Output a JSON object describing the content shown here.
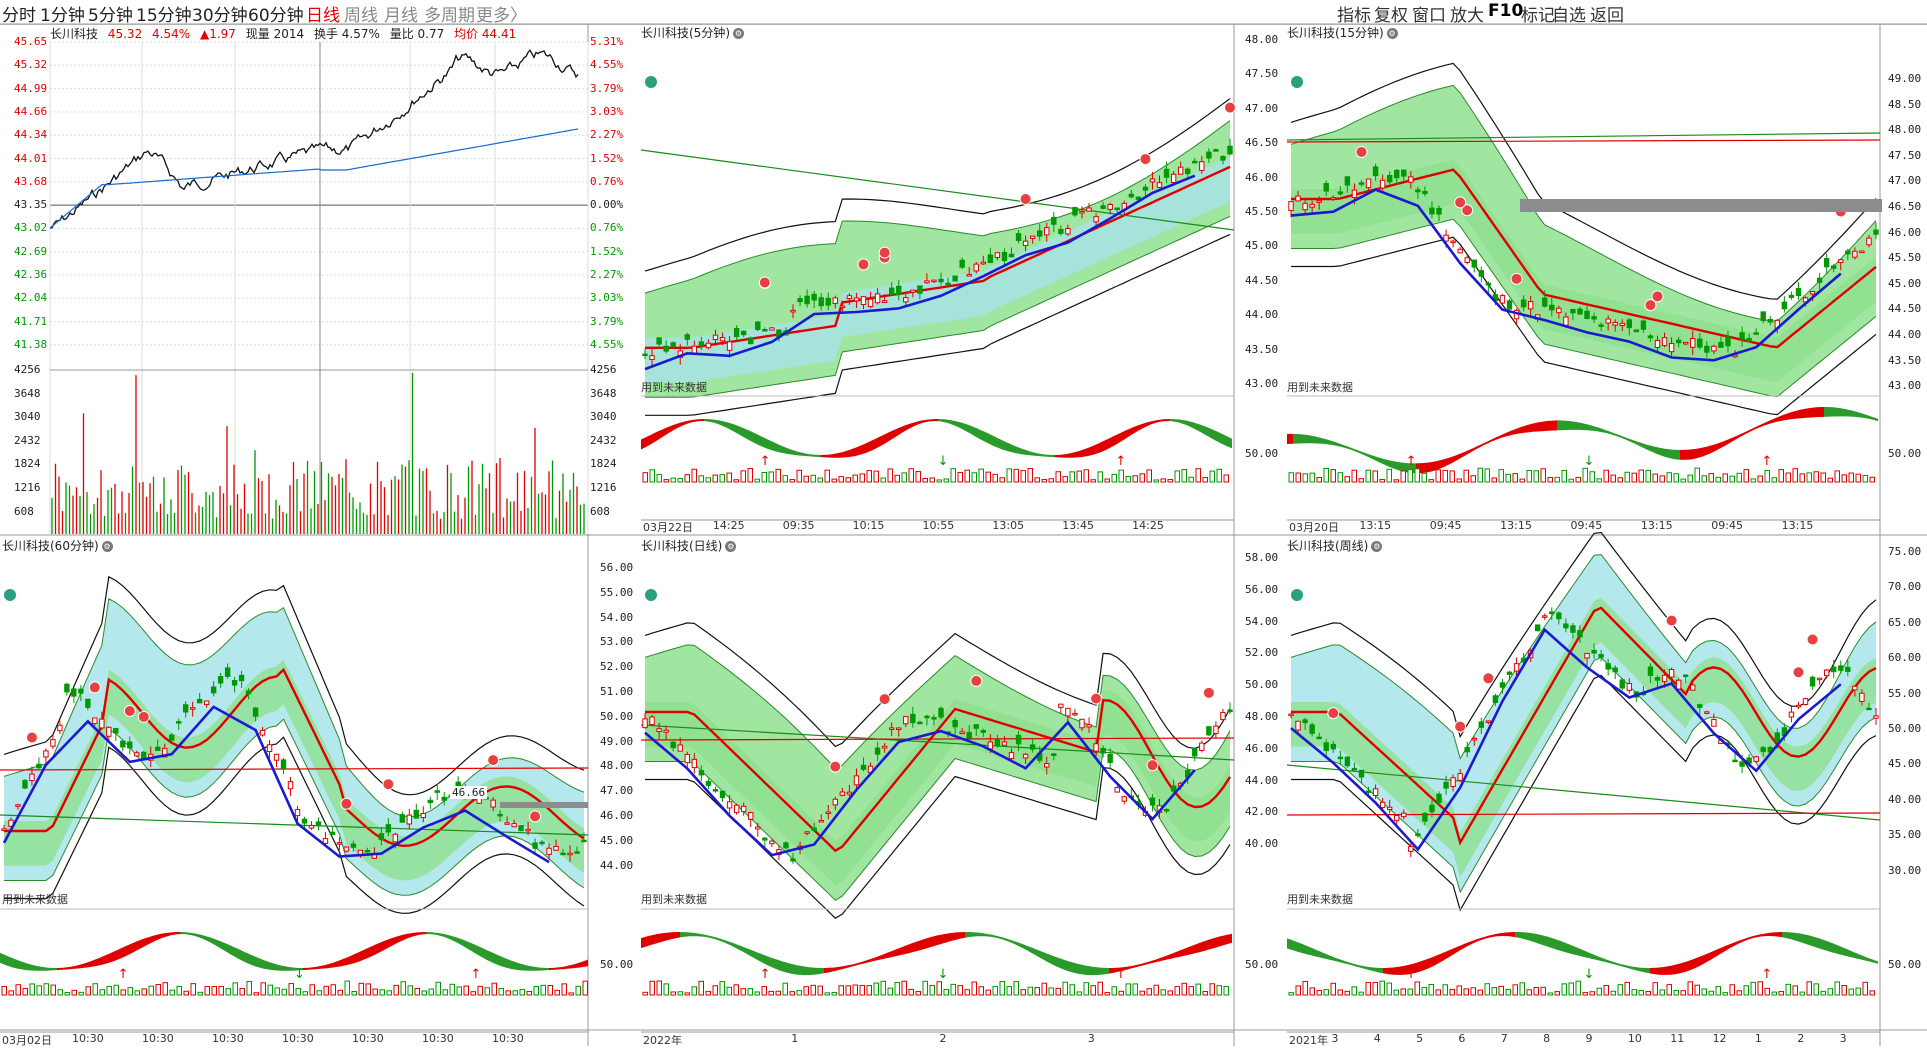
{
  "topbar": {
    "periods": [
      {
        "label": "分时",
        "active": false
      },
      {
        "label": "1分钟",
        "active": false
      },
      {
        "label": "5分钟",
        "active": false
      },
      {
        "label": "15分钟",
        "active": false
      },
      {
        "label": "30分钟",
        "active": false
      },
      {
        "label": "60分钟",
        "active": false
      },
      {
        "label": "日线",
        "active": true
      },
      {
        "label": "周线",
        "active": false
      },
      {
        "label": "月线",
        "active": false
      },
      {
        "label": "多周期",
        "active": false
      },
      {
        "label": "更多〉",
        "active": false
      }
    ],
    "tools": [
      "指标",
      "复权",
      "窗口",
      "放大",
      "F10",
      "标记",
      "自选",
      "返回"
    ]
  },
  "colors": {
    "up": "#e00000",
    "down": "#009900",
    "band_green": "#8fe08f",
    "band_cyan": "#a8e4ea",
    "wave_blue": "#1a1ad0"
  },
  "intraday": {
    "name": "长川科技",
    "price": "45.32",
    "pct": "4.54%",
    "change": "▲1.97",
    "volume_label": "现量 2014",
    "turnover_label": "换手 4.57%",
    "volratio_label": "量比 0.77",
    "avg_label": "均价 44.41",
    "price_ticks": [
      "45.65",
      "45.32",
      "44.99",
      "44.66",
      "44.34",
      "44.01",
      "43.68",
      "43.35",
      "43.02",
      "42.69",
      "42.36",
      "42.04",
      "41.71",
      "41.38"
    ],
    "pct_ticks": [
      "5.31%",
      "4.55%",
      "3.79%",
      "3.03%",
      "2.27%",
      "1.52%",
      "0.76%",
      "0.00%",
      "0.76%",
      "1.52%",
      "2.27%",
      "3.03%",
      "3.79%",
      "4.55%"
    ],
    "vol_ticks": [
      "4256",
      "3648",
      "3040",
      "2432",
      "1824",
      "1216",
      "608"
    ]
  },
  "panels": [
    {
      "id": "m5",
      "title": "长川科技(5分钟)",
      "note": "用到未来数据",
      "y_ticks": [],
      "x_ticks": [
        "03月22日",
        "14:25",
        "09:35",
        "10:15",
        "10:55",
        "13:05",
        "13:45",
        "14:25"
      ]
    },
    {
      "id": "m15",
      "title": "长川科技(15分钟)",
      "note": "用到未来数据",
      "y_ticks": [
        "48.00",
        "47.50",
        "47.00",
        "46.50",
        "46.00",
        "45.50",
        "45.00",
        "44.50",
        "44.00",
        "43.50",
        "43.00"
      ],
      "y_ticks_right": [
        "49.00",
        "48.50",
        "48.00",
        "47.50",
        "47.00",
        "46.50",
        "46.00",
        "45.50",
        "45.00",
        "44.50",
        "44.00",
        "43.50",
        "43.00"
      ],
      "osc_tick": "50.00",
      "x_ticks": [
        "03月20日",
        "13:15",
        "09:45",
        "13:15",
        "09:45",
        "13:15",
        "09:45",
        "13:15"
      ]
    },
    {
      "id": "m60",
      "title": "长川科技(60分钟)",
      "note": "用到未来数据",
      "price_tag": "46.66",
      "y_ticks": [],
      "x_ticks": [
        "03月02日",
        "10:30",
        "10:30",
        "10:30",
        "10:30",
        "10:30",
        "10:30",
        "10:30"
      ]
    },
    {
      "id": "day",
      "title": "长川科技(日线)",
      "note": "用到未来数据",
      "y_ticks": [
        "56.00",
        "55.00",
        "54.00",
        "53.00",
        "52.00",
        "51.00",
        "50.00",
        "49.00",
        "48.00",
        "47.00",
        "46.00",
        "45.00",
        "44.00"
      ],
      "osc_tick": "50.00",
      "x_ticks": [
        "2022年",
        "1",
        "2",
        "3"
      ]
    },
    {
      "id": "week",
      "title": "长川科技(周线)",
      "note": "用到未来数据",
      "y_ticks": [
        "58.00",
        "56.00",
        "54.00",
        "52.00",
        "50.00",
        "48.00",
        "46.00",
        "44.00",
        "42.00",
        "40.00"
      ],
      "y_ticks_right": [
        "75.00",
        "70.00",
        "65.00",
        "60.00",
        "55.00",
        "50.00",
        "45.00",
        "40.00",
        "35.00",
        "30.00"
      ],
      "osc_tick": "50.00",
      "x_ticks": [
        "2021年",
        "3",
        "4",
        "5",
        "6",
        "7",
        "8",
        "9",
        "10",
        "11",
        "12",
        "1",
        "2",
        "3"
      ]
    }
  ]
}
